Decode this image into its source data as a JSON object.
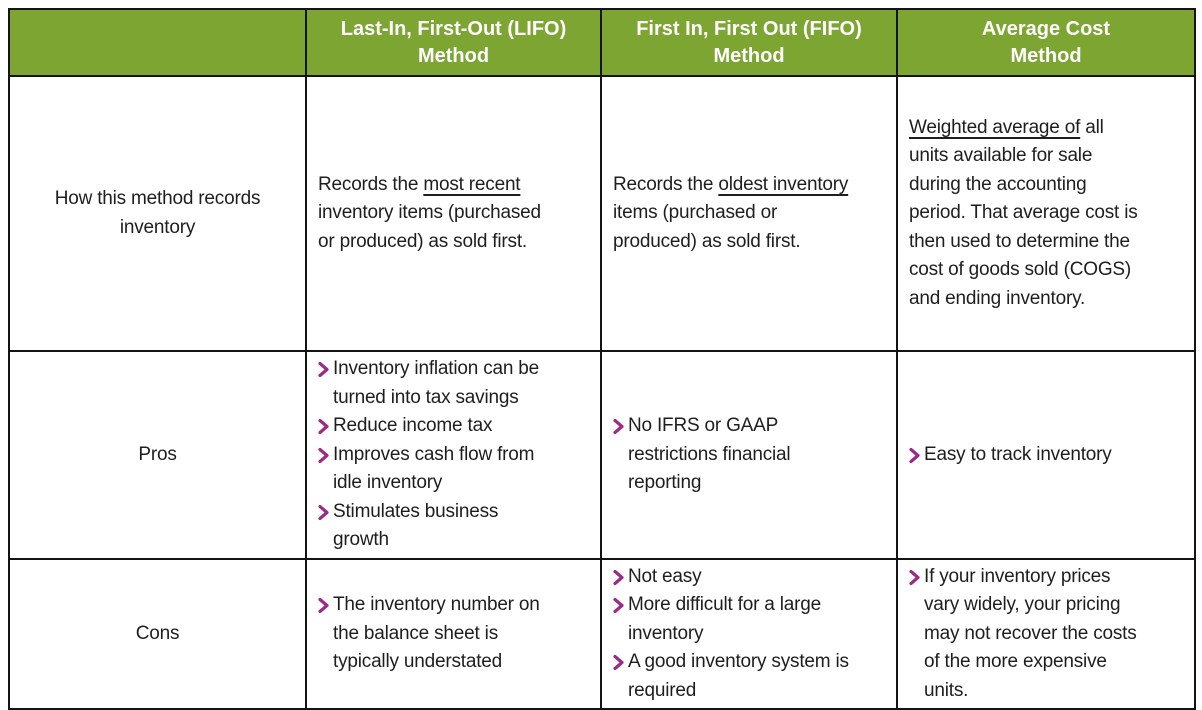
{
  "theme": {
    "green": "#7CA531",
    "magenta": "#9C2A87",
    "text_color": "#1e1e1e",
    "border_color": "#141414"
  },
  "table": {
    "header": {
      "corner": "",
      "columns": [
        "Last-In, First-Out (LIFO)\nMethod",
        "First In, First Out (FIFO)\nMethod",
        "Average Cost\nMethod"
      ]
    },
    "rows": [
      {
        "label": "How this method records\ninventory",
        "cells": [
          {
            "type": "runs",
            "runs": [
              {
                "text": "Records the "
              },
              {
                "text": "most recent",
                "underline": true
              },
              {
                "text": "\ninventory items (purchased\nor produced) as sold first."
              }
            ]
          },
          {
            "type": "runs",
            "runs": [
              {
                "text": "Records the "
              },
              {
                "text": "oldest inventory",
                "underline": true
              },
              {
                "text": "\nitems (purchased or\nproduced) as sold first."
              }
            ]
          },
          {
            "type": "runs",
            "runs": [
              {
                "text": "Weighted average of",
                "underline": true
              },
              {
                "text": " all\nunits available for sale\nduring the accounting\nperiod. That average cost is\nthen used to determine the\ncost of goods sold (COGS)\nand ending inventory."
              }
            ]
          }
        ]
      },
      {
        "label": "Pros",
        "cells": [
          {
            "type": "list",
            "items": [
              "Inventory inflation can be\nturned into tax savings",
              "Reduce income tax",
              "Improves cash flow from\nidle inventory",
              "Stimulates business\ngrowth"
            ]
          },
          {
            "type": "list",
            "items": [
              "No IFRS or GAAP\nrestrictions financial\nreporting"
            ]
          },
          {
            "type": "list",
            "items": [
              "Easy to track inventory"
            ]
          }
        ]
      },
      {
        "label": "Cons",
        "cells": [
          {
            "type": "list",
            "items": [
              "The inventory number on\nthe balance sheet is\ntypically understated"
            ]
          },
          {
            "type": "list",
            "items": [
              "Not easy",
              "More difficult for a large\ninventory",
              "A good inventory system is\nrequired"
            ]
          },
          {
            "type": "list",
            "items": [
              "If your inventory prices\nvary widely, your pricing\nmay not recover the costs\nof the more expensive\nunits."
            ]
          }
        ]
      }
    ]
  },
  "chart_data": {
    "type": "table",
    "title": "",
    "columns": [
      "",
      "Last-In, First-Out (LIFO) Method",
      "First In, First Out (FIFO) Method",
      "Average Cost Method"
    ],
    "rows": [
      {
        "row_label": "How this method records inventory",
        "lifo": "Records the most recent inventory items (purchased or produced) as sold first.",
        "fifo": "Records the oldest inventory items (purchased or produced) as sold first.",
        "average_cost": "Weighted average of all units available for sale during the accounting period. That average cost is then used to determine the cost of goods sold (COGS) and ending inventory."
      },
      {
        "row_label": "Pros",
        "lifo": [
          "Inventory inflation can be turned into tax savings",
          "Reduce income tax",
          "Improves cash flow from idle inventory",
          "Stimulates business growth"
        ],
        "fifo": [
          "No IFRS or GAAP restrictions financial reporting"
        ],
        "average_cost": [
          "Easy to track inventory"
        ]
      },
      {
        "row_label": "Cons",
        "lifo": [
          "The inventory number on the balance sheet is typically understated"
        ],
        "fifo": [
          "Not easy",
          "More difficult for a large inventory",
          "A good inventory system is required"
        ],
        "average_cost": [
          "If your inventory prices vary widely, your pricing may not recover the costs of the more expensive units."
        ]
      }
    ],
    "layout_hints": {
      "header_background": "#7CA531",
      "header_text_color": "#ffffff",
      "bullet_style": "magenta-chevron",
      "underlined_phrases": [
        "most recent",
        "oldest inventory",
        "Weighted average of"
      ],
      "grid": true
    }
  }
}
